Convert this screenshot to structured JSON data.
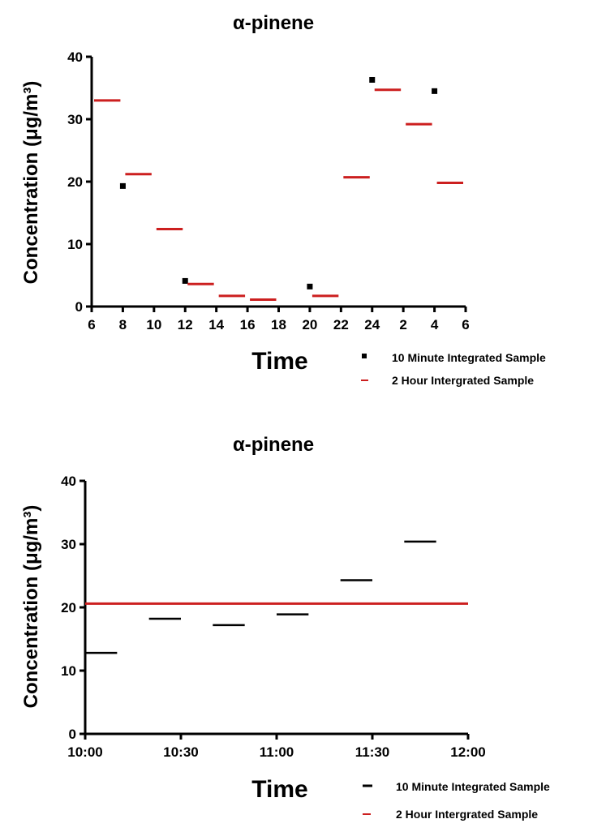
{
  "colors": {
    "red": "#cc1f1f",
    "black": "#000000"
  },
  "chart_data": [
    {
      "type": "scatter",
      "title": "α-pinene",
      "xlabel": "Time",
      "ylabel": "Concentration (μg/m³)",
      "ylim": [
        0,
        40
      ],
      "yticks": [
        "0",
        "10",
        "20",
        "30",
        "40"
      ],
      "xticks": [
        "6",
        "8",
        "10",
        "12",
        "14",
        "16",
        "18",
        "20",
        "22",
        "24",
        "2",
        "4",
        "6"
      ],
      "xrange_hours": [
        6,
        30
      ],
      "grid": false,
      "legend_position": "bottom-right",
      "series": [
        {
          "name": "10 Minute Integrated Sample",
          "marker": "square",
          "color": "#000000",
          "points": [
            {
              "time": "8",
              "value": 19.3
            },
            {
              "time": "12",
              "value": 4.1
            },
            {
              "time": "20",
              "value": 3.2
            },
            {
              "time": "24",
              "value": 36.3
            },
            {
              "time": "4",
              "value": 34.5
            }
          ]
        },
        {
          "name": "2 Hour Intergrated Sample",
          "marker": "dash",
          "color": "#cc1f1f",
          "segments": [
            {
              "start": "6",
              "end": "8",
              "value": 33.0
            },
            {
              "start": "8",
              "end": "10",
              "value": 21.2
            },
            {
              "start": "10",
              "end": "12",
              "value": 12.4
            },
            {
              "start": "12",
              "end": "14",
              "value": 3.6
            },
            {
              "start": "14",
              "end": "16",
              "value": 1.7
            },
            {
              "start": "16",
              "end": "18",
              "value": 1.1
            },
            {
              "start": "20",
              "end": "22",
              "value": 1.7
            },
            {
              "start": "22",
              "end": "24",
              "value": 20.7
            },
            {
              "start": "24",
              "end": "2",
              "value": 34.7
            },
            {
              "start": "2",
              "end": "4",
              "value": 29.2
            },
            {
              "start": "4",
              "end": "6",
              "value": 19.8
            }
          ]
        }
      ]
    },
    {
      "type": "line",
      "title": "α-pinene",
      "xlabel": "Time",
      "ylabel": "Concentration (μg/m³)",
      "ylim": [
        0,
        40
      ],
      "yticks": [
        "0",
        "10",
        "20",
        "30",
        "40"
      ],
      "xticks": [
        "10:00",
        "10:30",
        "11:00",
        "11:30",
        "12:00"
      ],
      "xrange": [
        "10:00",
        "12:00"
      ],
      "grid": false,
      "legend_position": "bottom-right",
      "series": [
        {
          "name": "10 Minute Integrated Sample",
          "marker": "dash",
          "color": "#000000",
          "segments": [
            {
              "start": "10:00",
              "end": "10:10",
              "value": 12.8
            },
            {
              "start": "10:20",
              "end": "10:30",
              "value": 18.2
            },
            {
              "start": "10:40",
              "end": "10:50",
              "value": 17.2
            },
            {
              "start": "11:00",
              "end": "11:10",
              "value": 18.9
            },
            {
              "start": "11:20",
              "end": "11:30",
              "value": 24.3
            },
            {
              "start": "11:40",
              "end": "11:50",
              "value": 30.4
            }
          ]
        },
        {
          "name": "2 Hour Intergrated Sample",
          "marker": "dash",
          "color": "#cc1f1f",
          "segments": [
            {
              "start": "10:00",
              "end": "12:00",
              "value": 20.6
            }
          ]
        }
      ]
    }
  ]
}
